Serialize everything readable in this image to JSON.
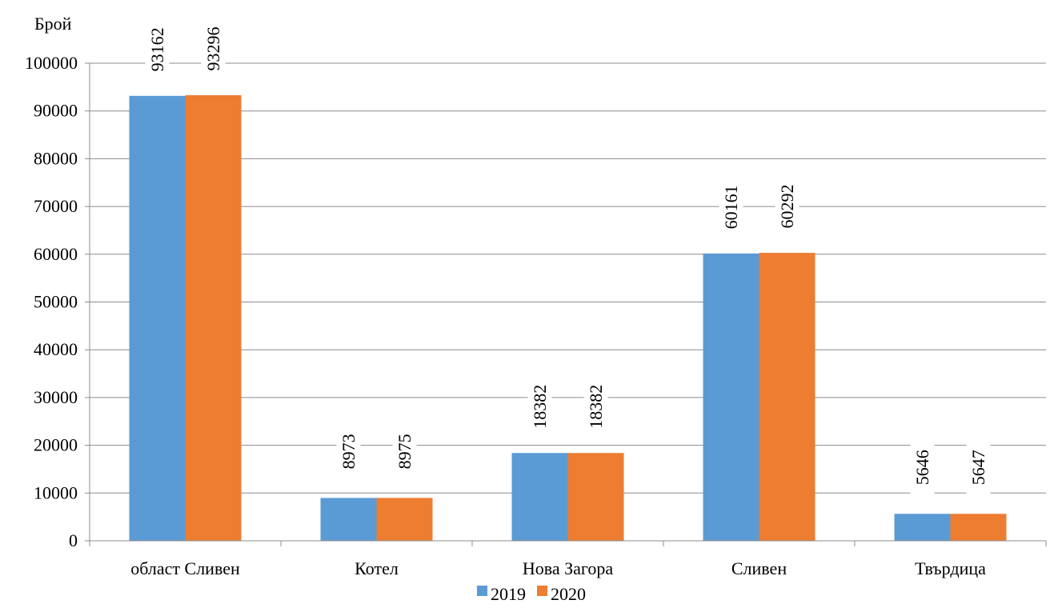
{
  "chart_data": {
    "type": "bar",
    "ylabel": "Брой",
    "xlabel": "",
    "ylim": [
      0,
      100000
    ],
    "yticks": [
      "0",
      "10000",
      "20000",
      "30000",
      "40000",
      "50000",
      "60000",
      "70000",
      "80000",
      "90000",
      "100000"
    ],
    "categories": [
      "област Сливен",
      "Котел",
      "Нова Загора",
      "Сливен",
      "Твърдица"
    ],
    "series": [
      {
        "name": "2019",
        "color": "#5b9bd5",
        "values": [
          93162,
          8973,
          18382,
          60161,
          5646
        ]
      },
      {
        "name": "2020",
        "color": "#ed7d31",
        "values": [
          93296,
          8975,
          18382,
          60292,
          5647
        ]
      }
    ],
    "grid": true,
    "legend": "bottom-center"
  }
}
